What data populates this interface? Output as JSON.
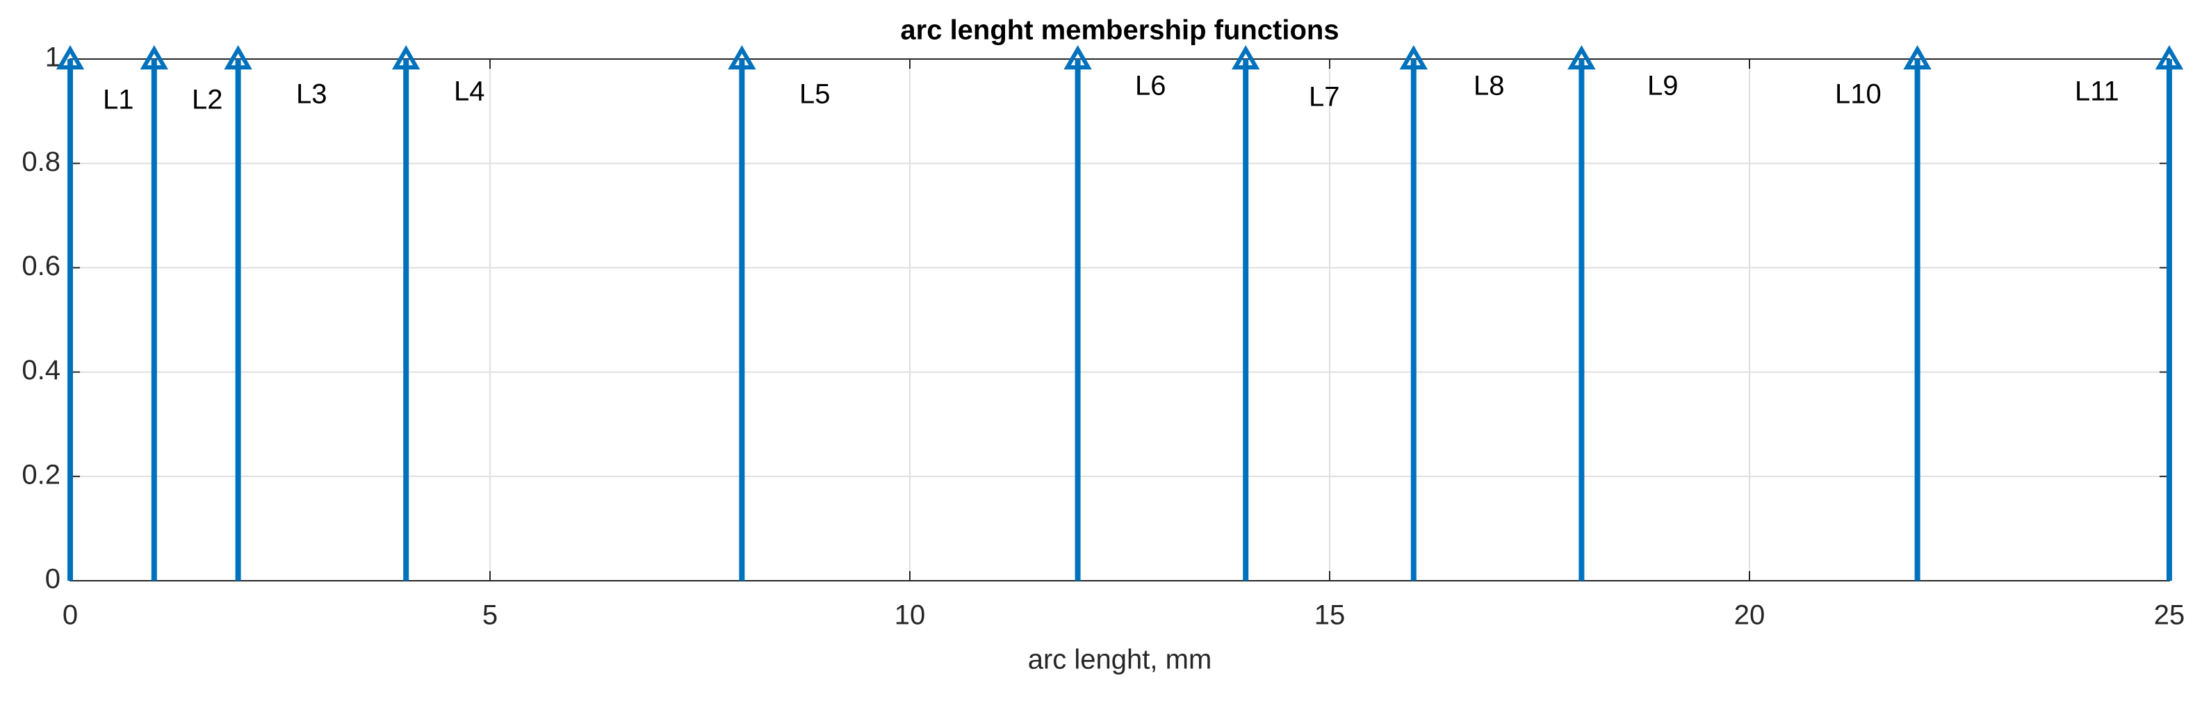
{
  "chart_data": {
    "type": "stem",
    "title": "arc lenght membership functions",
    "x_label": "arc lenght, mm",
    "x": [
      0,
      1,
      2,
      4,
      8,
      12,
      14,
      16,
      18,
      22,
      25
    ],
    "values": [
      1,
      1,
      1,
      1,
      1,
      1,
      1,
      1,
      1,
      1,
      1
    ],
    "labels": [
      "L1",
      "L2",
      "L3",
      "L4",
      "L5",
      "L6",
      "L7",
      "L8",
      "L9",
      "L10",
      "L11"
    ],
    "color": "#0072bd",
    "xlim": [
      0,
      25
    ],
    "xticks": [
      0,
      5,
      10,
      15,
      20,
      25
    ],
    "ylim": [
      0,
      1
    ],
    "yticks": [
      0,
      0.2,
      0.4,
      0.6,
      0.8,
      1
    ],
    "grid": true
  }
}
